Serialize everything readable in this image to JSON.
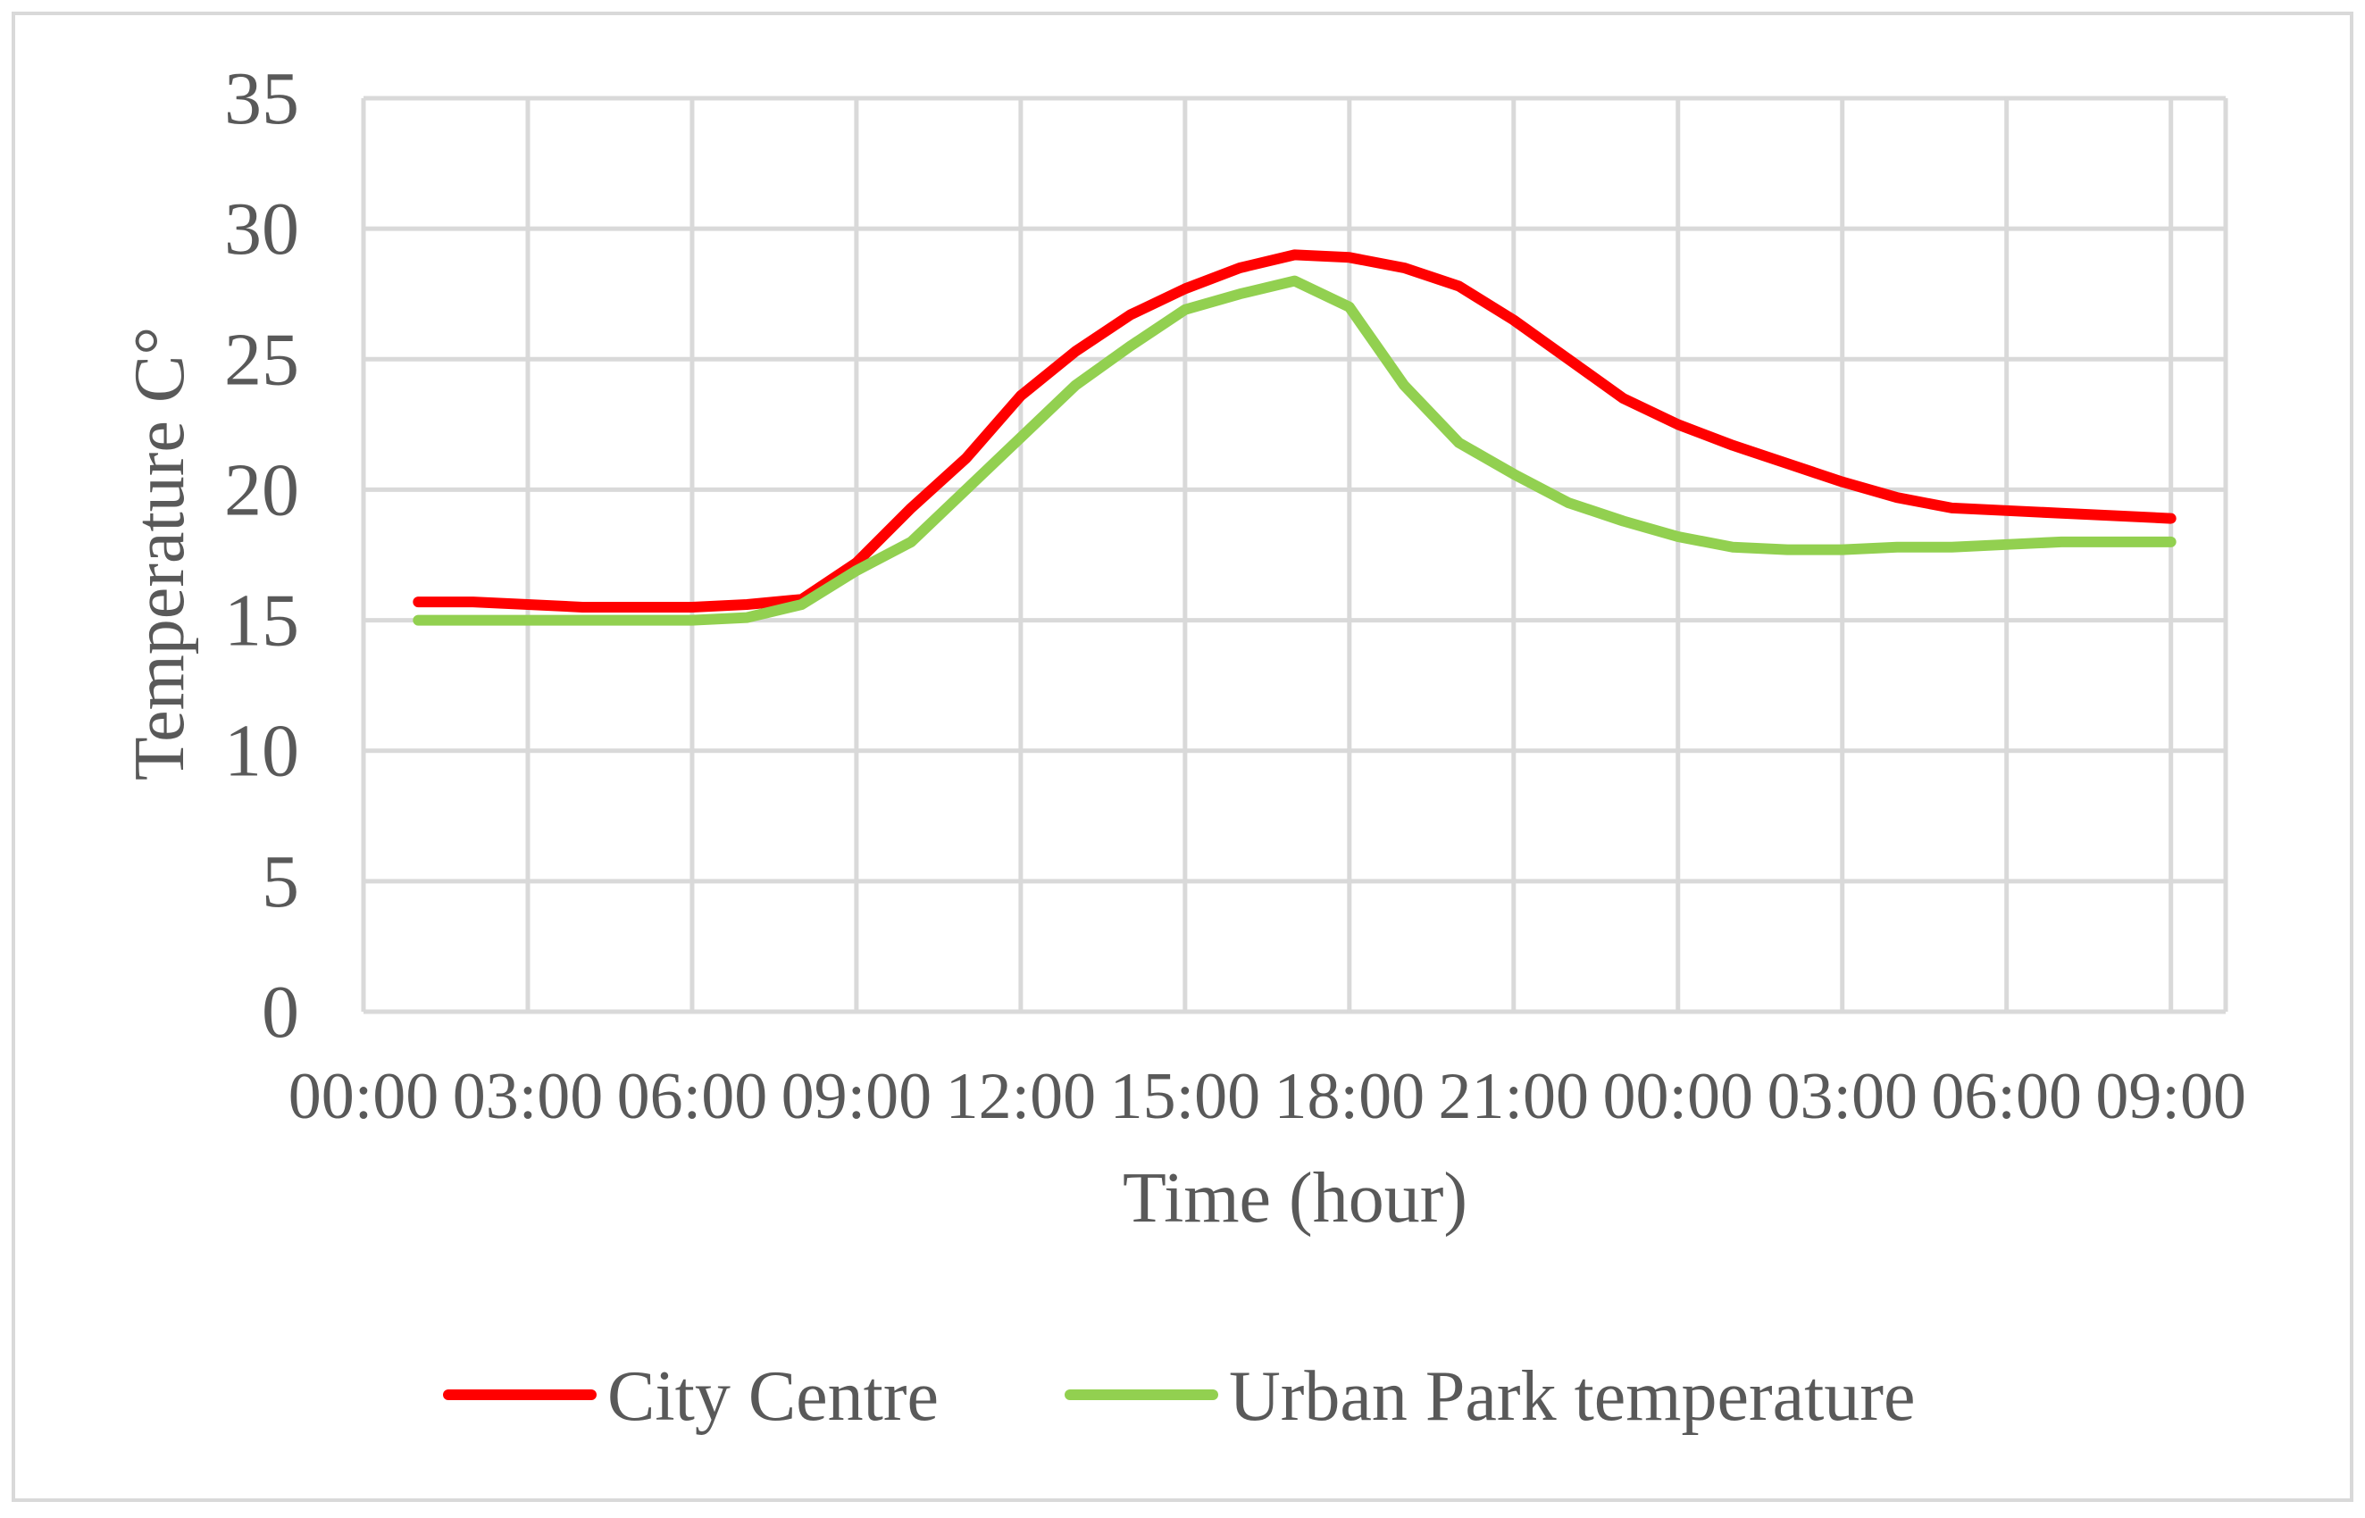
{
  "chart_data": {
    "type": "line",
    "title": "",
    "xlabel": "Time (hour)",
    "ylabel": "Temperature C°",
    "ylim": [
      0,
      35
    ],
    "y_ticks": [
      "0",
      "5",
      "10",
      "15",
      "20",
      "25",
      "30",
      "35"
    ],
    "x_tick_labels": [
      "00:00",
      "03:00",
      "06:00",
      "09:00",
      "12:00",
      "15:00",
      "18:00",
      "21:00",
      "00:00",
      "03:00",
      "06:00",
      "09:00"
    ],
    "grid": true,
    "legend_position": "bottom",
    "x_hours": [
      1,
      2,
      3,
      4,
      5,
      6,
      7,
      8,
      9,
      10,
      11,
      12,
      13,
      14,
      15,
      16,
      17,
      18,
      19,
      20,
      21,
      22,
      23,
      24,
      25,
      26,
      27,
      28,
      29,
      30,
      31,
      32,
      33,
      34
    ],
    "series": [
      {
        "name": "City Centre",
        "color": "#ff0000",
        "values": [
          15.7,
          15.7,
          15.6,
          15.5,
          15.5,
          15.5,
          15.6,
          15.8,
          17.2,
          19.3,
          21.2,
          23.6,
          25.3,
          26.7,
          27.7,
          28.5,
          29.0,
          28.9,
          28.5,
          27.8,
          26.5,
          25.0,
          23.5,
          22.5,
          21.7,
          21.0,
          20.3,
          19.7,
          19.3,
          19.2,
          19.1,
          19.0,
          18.9
        ],
        "x_start": 1
      },
      {
        "name": "Urban Park temperature",
        "color": "#92d050",
        "values": [
          15.0,
          15.0,
          15.0,
          15.0,
          15.0,
          15.0,
          15.1,
          15.6,
          16.9,
          18.0,
          20.0,
          22.0,
          24.0,
          25.5,
          26.9,
          27.5,
          28.0,
          27.0,
          24.0,
          21.8,
          20.6,
          19.5,
          18.8,
          18.2,
          17.8,
          17.7,
          17.7,
          17.8,
          17.8,
          17.9,
          18.0,
          18.0,
          18.0
        ],
        "x_start": 1
      }
    ]
  }
}
